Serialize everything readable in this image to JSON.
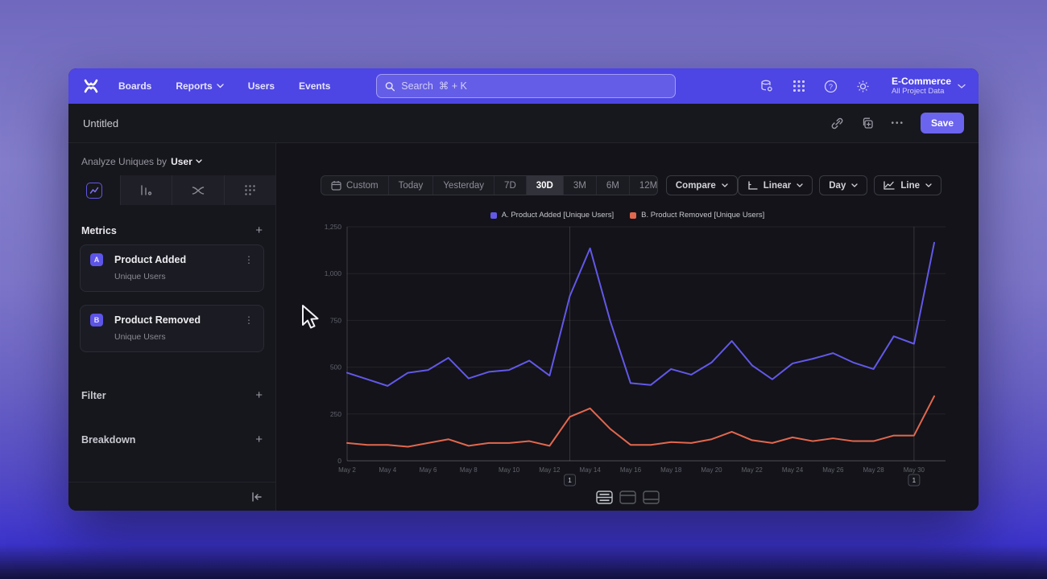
{
  "nav": {
    "items": [
      {
        "label": "Boards",
        "has_chevron": false
      },
      {
        "label": "Reports",
        "has_chevron": true
      },
      {
        "label": "Users",
        "has_chevron": false
      },
      {
        "label": "Events",
        "has_chevron": false
      }
    ],
    "search": {
      "placeholder": "Search  ⌘ + K"
    },
    "project": {
      "name": "E-Commerce",
      "scope": "All Project Data"
    }
  },
  "report_header": {
    "title": "Untitled",
    "more_label": "•••",
    "save_label": "Save"
  },
  "sidebar": {
    "analyze_prefix": "Analyze Uniques by",
    "analyze_value": "User",
    "metrics": {
      "heading": "Metrics",
      "add_label": "+",
      "items": [
        {
          "badge": "A",
          "name": "Product Added",
          "measure": "Unique Users",
          "menu": "⋮"
        },
        {
          "badge": "B",
          "name": "Product Removed",
          "measure": "Unique Users",
          "menu": "⋮"
        }
      ]
    },
    "filter": {
      "heading": "Filter",
      "add_label": "+"
    },
    "breakdown": {
      "heading": "Breakdown",
      "add_label": "+"
    }
  },
  "controls": {
    "ranges": [
      "Custom",
      "Today",
      "Yesterday",
      "7D",
      "30D",
      "3M",
      "6M",
      "12M"
    ],
    "active_range": "30D",
    "compare_label": "Compare",
    "scale_label": "Linear",
    "interval_label": "Day",
    "chart_type_label": "Line"
  },
  "chart_data": {
    "type": "line",
    "x": [
      "May 2",
      "May 3",
      "May 4",
      "May 5",
      "May 6",
      "May 7",
      "May 8",
      "May 9",
      "May 10",
      "May 11",
      "May 12",
      "May 13",
      "May 14",
      "May 15",
      "May 16",
      "May 17",
      "May 18",
      "May 19",
      "May 20",
      "May 21",
      "May 22",
      "May 23",
      "May 24",
      "May 25",
      "May 26",
      "May 27",
      "May 28",
      "May 29",
      "May 30",
      "May 31"
    ],
    "x_label_every": 2,
    "series": [
      {
        "name": "A. Product Added [Unique Users]",
        "color": "#6258E8",
        "values": [
          470,
          435,
          400,
          470,
          485,
          550,
          440,
          475,
          485,
          535,
          455,
          880,
          1135,
          745,
          415,
          405,
          490,
          460,
          525,
          640,
          510,
          435,
          520,
          545,
          575,
          525,
          490,
          665,
          625,
          1165
        ]
      },
      {
        "name": "B. Product Removed [Unique Users]",
        "color": "#E2674E",
        "values": [
          95,
          85,
          85,
          75,
          95,
          115,
          80,
          95,
          95,
          105,
          80,
          235,
          280,
          170,
          85,
          85,
          100,
          95,
          115,
          155,
          110,
          95,
          125,
          105,
          120,
          105,
          105,
          135,
          135,
          345
        ]
      }
    ],
    "ylim": [
      0,
      1250
    ],
    "yticks": [
      0,
      250,
      500,
      750,
      1000,
      1250
    ],
    "ytick_labels": [
      "0",
      "250",
      "500",
      "750",
      "1,000",
      "1,250"
    ],
    "annotations": [
      {
        "index": 11,
        "label": "1"
      },
      {
        "index": 28,
        "label": "1"
      }
    ],
    "legend_position": "top",
    "grid": "horizontal"
  },
  "colors": {
    "accent": "#4D45E4",
    "line_a": "#6258E8",
    "line_b": "#E2674E",
    "save_bg": "#6B64EE"
  }
}
